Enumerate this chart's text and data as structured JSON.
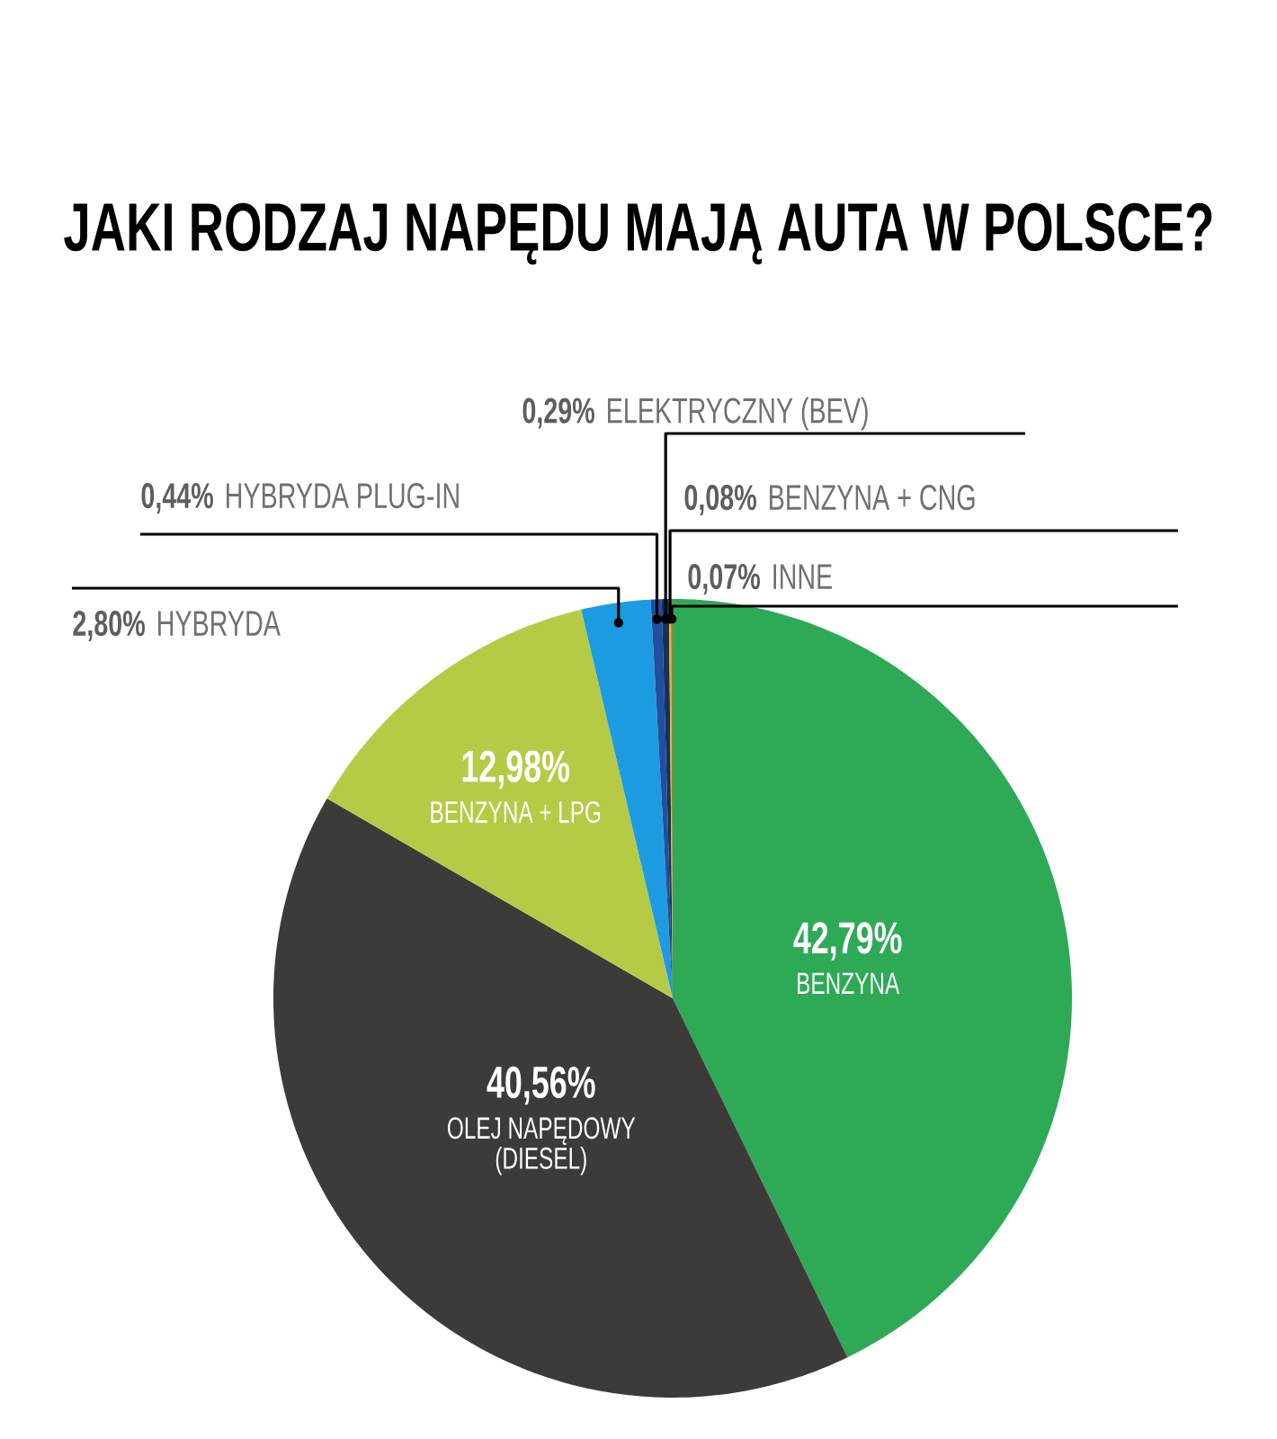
{
  "chart_data": {
    "type": "pie",
    "title": "JAKI RODZAJ NAPĘDU MAJĄ AUTA W POLSCE?",
    "categories": [
      "BENZYNA",
      "OLEJ NAPĘDOWY (DIESEL)",
      "BENZYNA + LPG",
      "HYBRYDA",
      "HYBRYDA PLUG-IN",
      "ELEKTRYCZNY (BEV)",
      "BENZYNA + CNG",
      "INNE"
    ],
    "values": [
      42.79,
      40.56,
      12.98,
      2.8,
      0.44,
      0.29,
      0.08,
      0.07
    ],
    "colors": [
      "#2eaa57",
      "#3d3b3a",
      "#b6cb45",
      "#1d9be0",
      "#1f4fa0",
      "#18305a",
      "#d8c020",
      "#c07020"
    ],
    "value_labels": [
      "42,79%",
      "40,56%",
      "12,98%",
      "2,80%",
      "0,44%",
      "0,29%",
      "0,08%",
      "0,07%"
    ]
  }
}
